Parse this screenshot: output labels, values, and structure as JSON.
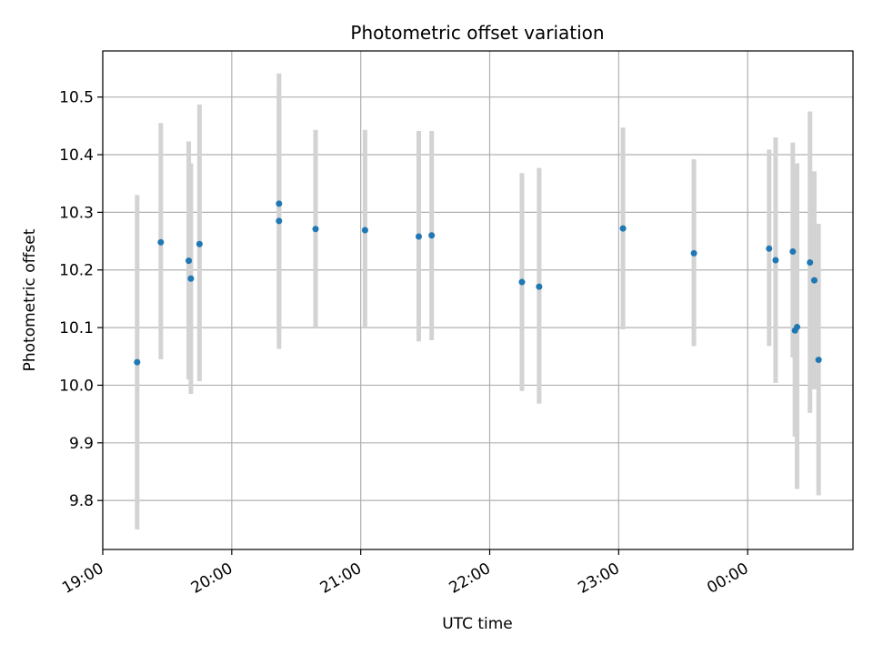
{
  "chart_data": {
    "type": "scatter",
    "title": "Photometric offset variation",
    "xlabel": "UTC time",
    "ylabel": "Photometric offset",
    "x_tick_labels": [
      "19:00",
      "20:00",
      "21:00",
      "22:00",
      "23:00",
      "00:00"
    ],
    "y_tick_labels": [
      "9.8",
      "9.9",
      "10.0",
      "10.1",
      "10.2",
      "10.3",
      "10.4",
      "10.5"
    ],
    "y_ticks": [
      9.8,
      9.9,
      10.0,
      10.1,
      10.2,
      10.3,
      10.4,
      10.5
    ],
    "xlim": [
      "19:00",
      "00:49"
    ],
    "ylim": [
      9.715,
      10.58
    ],
    "grid": true,
    "marker_color": "#1f77b4",
    "errorbar_color": "#d3d3d3",
    "points": [
      {
        "x": "19:16",
        "y": 10.04,
        "y_low": 9.75,
        "y_high": 10.33
      },
      {
        "x": "19:27",
        "y": 10.248,
        "y_low": 10.045,
        "y_high": 10.455
      },
      {
        "x": "19:40",
        "y": 10.216,
        "y_low": 10.01,
        "y_high": 10.423
      },
      {
        "x": "19:41",
        "y": 10.185,
        "y_low": 9.985,
        "y_high": 10.385
      },
      {
        "x": "19:45",
        "y": 10.245,
        "y_low": 10.007,
        "y_high": 10.487
      },
      {
        "x": "20:22",
        "y": 10.285,
        "y_low": 10.063,
        "y_high": 10.508
      },
      {
        "x": "20:22",
        "y": 10.315,
        "y_low": 10.09,
        "y_high": 10.541
      },
      {
        "x": "20:39",
        "y": 10.271,
        "y_low": 10.1,
        "y_high": 10.443
      },
      {
        "x": "21:02",
        "y": 10.269,
        "y_low": 10.1,
        "y_high": 10.443
      },
      {
        "x": "21:27",
        "y": 10.258,
        "y_low": 10.076,
        "y_high": 10.441
      },
      {
        "x": "21:33",
        "y": 10.26,
        "y_low": 10.078,
        "y_high": 10.441
      },
      {
        "x": "22:15",
        "y": 10.179,
        "y_low": 9.99,
        "y_high": 10.368
      },
      {
        "x": "22:23",
        "y": 10.171,
        "y_low": 9.968,
        "y_high": 10.377
      },
      {
        "x": "23:02",
        "y": 10.272,
        "y_low": 10.097,
        "y_high": 10.447
      },
      {
        "x": "23:35",
        "y": 10.229,
        "y_low": 10.068,
        "y_high": 10.392
      },
      {
        "x": "00:10",
        "y": 10.237,
        "y_low": 10.068,
        "y_high": 10.409
      },
      {
        "x": "00:13",
        "y": 10.217,
        "y_low": 10.004,
        "y_high": 10.43
      },
      {
        "x": "00:21",
        "y": 10.232,
        "y_low": 10.048,
        "y_high": 10.421
      },
      {
        "x": "00:22",
        "y": 10.095,
        "y_low": 9.911,
        "y_high": 10.385
      },
      {
        "x": "00:23",
        "y": 10.101,
        "y_low": 9.82,
        "y_high": 10.385
      },
      {
        "x": "00:29",
        "y": 10.213,
        "y_low": 9.952,
        "y_high": 10.475
      },
      {
        "x": "00:31",
        "y": 10.182,
        "y_low": 9.993,
        "y_high": 10.371
      },
      {
        "x": "00:33",
        "y": 10.044,
        "y_low": 9.809,
        "y_high": 10.28
      }
    ]
  }
}
